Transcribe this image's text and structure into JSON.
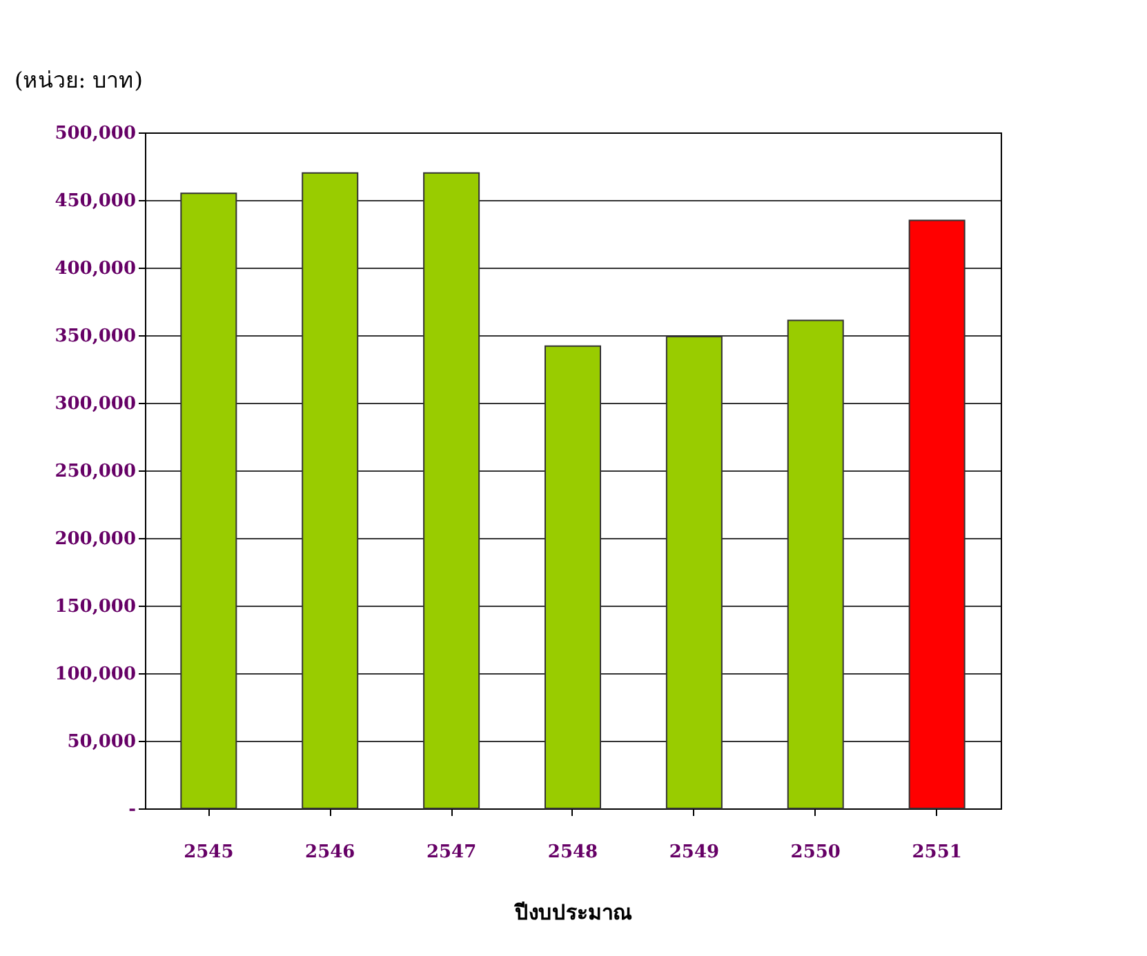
{
  "chart_data": {
    "type": "bar",
    "xlabel": "ปีงบประมาณ",
    "ylabel": "(หน่วย: บาท)",
    "categories": [
      "2545",
      "2546",
      "2547",
      "2548",
      "2549",
      "2550",
      "2551"
    ],
    "values": [
      455000,
      470000,
      470000,
      342000,
      349000,
      361000,
      435000
    ],
    "colors": [
      "#99cc00",
      "#99cc00",
      "#99cc00",
      "#99cc00",
      "#99cc00",
      "#99cc00",
      "#ff0000"
    ],
    "ylim": [
      0,
      500000
    ],
    "yticks": [
      {
        "value": 0,
        "label": "-"
      },
      {
        "value": 50000,
        "label": "50,000"
      },
      {
        "value": 100000,
        "label": "100,000"
      },
      {
        "value": 150000,
        "label": "150,000"
      },
      {
        "value": 200000,
        "label": "200,000"
      },
      {
        "value": 250000,
        "label": "250,000"
      },
      {
        "value": 300000,
        "label": "300,000"
      },
      {
        "value": 350000,
        "label": "350,000"
      },
      {
        "value": 400000,
        "label": "400,000"
      },
      {
        "value": 450000,
        "label": "450,000"
      },
      {
        "value": 500000,
        "label": "500,000"
      }
    ],
    "grid": "y"
  }
}
